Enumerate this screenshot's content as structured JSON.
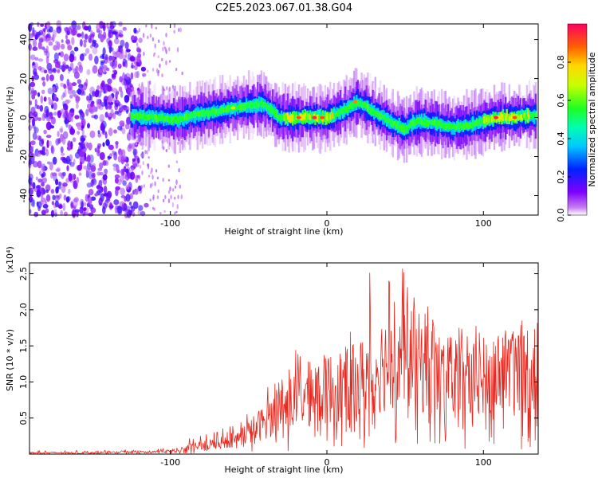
{
  "title": "C2E5.2023.067.01.38.G04",
  "chart_data": [
    {
      "type": "heatmap",
      "xlabel": "Height of straight line (km)",
      "ylabel": "Frequency (Hz)",
      "xlim": [
        -190,
        135
      ],
      "ylim": [
        -50,
        48
      ],
      "xticks": [
        -100,
        0,
        100
      ],
      "yticks": [
        -40,
        -20,
        0,
        20,
        40
      ],
      "colorbar": {
        "label": "Normalized spectral amplitude",
        "range": [
          0.0,
          1.0
        ],
        "ticks": [
          "0.0",
          "0.2",
          "0.4",
          "0.6",
          "0.8"
        ],
        "tick_values": [
          0.0,
          0.2,
          0.4,
          0.6,
          0.8
        ]
      },
      "ridge": {
        "description_values": "center frequency of the dominant signal band vs height",
        "x": [
          -125,
          -110,
          -95,
          -80,
          -70,
          -60,
          -50,
          -40,
          -30,
          -20,
          -10,
          0,
          10,
          20,
          30,
          40,
          50,
          55,
          60,
          70,
          80,
          90,
          100,
          110,
          120,
          130
        ],
        "y": [
          1,
          0,
          -1,
          2,
          3,
          5,
          6,
          7,
          0,
          0,
          0,
          0,
          3,
          8,
          3,
          -2,
          -6,
          -3,
          -2,
          -3,
          -5,
          -4,
          -2,
          0,
          0,
          1
        ]
      }
    },
    {
      "type": "line",
      "xlabel": "Height of straight line (km)",
      "ylabel": "SNR (10 * v/v)",
      "yscale_label": "(x10⁴)",
      "xlim": [
        -190,
        135
      ],
      "ylim": [
        0,
        2.65
      ],
      "xticks": [
        -100,
        0,
        100
      ],
      "yticks": [
        0.5,
        1.0,
        1.5,
        2.0,
        2.5
      ],
      "ytick_labels": [
        "0.5",
        "1.0",
        "1.5",
        "2.0",
        "2.5"
      ],
      "series": [
        {
          "color": "#e8281e",
          "envelope_x": [
            -190,
            -150,
            -120,
            -100,
            -90,
            -80,
            -70,
            -60,
            -50,
            -40,
            -30,
            -20,
            -10,
            0,
            10,
            20,
            30,
            40,
            50,
            60,
            70,
            80,
            90,
            100,
            110,
            120,
            135
          ],
          "envelope_mean": [
            0.02,
            0.02,
            0.03,
            0.04,
            0.08,
            0.12,
            0.15,
            0.2,
            0.3,
            0.45,
            0.6,
            0.75,
            0.85,
            0.9,
            0.95,
            1.0,
            1.2,
            1.3,
            1.35,
            1.25,
            1.1,
            1.05,
            1.0,
            1.05,
            1.1,
            1.2,
            1.2
          ],
          "envelope_peak": [
            0.05,
            0.05,
            0.06,
            0.1,
            0.2,
            0.3,
            0.35,
            0.4,
            0.65,
            1.2,
            1.0,
            1.45,
            1.3,
            1.0,
            1.6,
            2.5,
            2.6,
            2.65,
            2.6,
            2.2,
            2.0,
            1.8,
            1.8,
            1.8,
            1.7,
            1.75,
            1.7
          ]
        }
      ]
    }
  ],
  "colors": {
    "line": "#e8281e",
    "axis": "#000000"
  }
}
